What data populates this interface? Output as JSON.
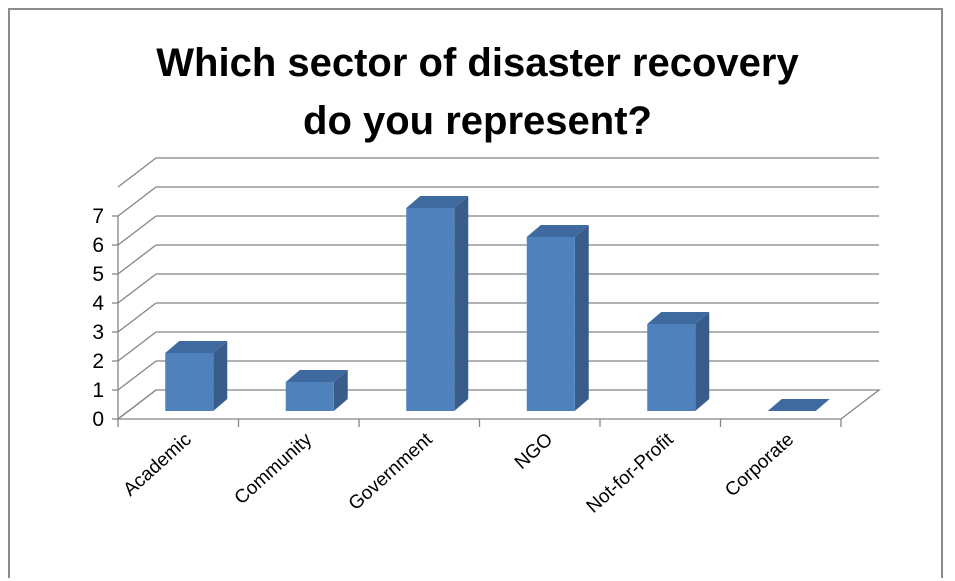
{
  "chart_data": {
    "type": "bar",
    "title": "Which sector of disaster recovery do you represent?",
    "categories": [
      "Academic",
      "Community",
      "Government",
      "NGO",
      "Not-for-Profit",
      "Corporate"
    ],
    "values": [
      2,
      1,
      7,
      6,
      3,
      0
    ],
    "ylim": [
      0,
      7
    ],
    "yticks": [
      "0",
      "1",
      "2",
      "3",
      "4",
      "5",
      "6",
      "7"
    ],
    "xlabel": "",
    "ylabel": "",
    "grid": true,
    "style": "3d-column",
    "colors": {
      "front": "#4f81bd",
      "side": "#385d8a",
      "top": "#3f6aa0",
      "grid": "#858585"
    }
  }
}
